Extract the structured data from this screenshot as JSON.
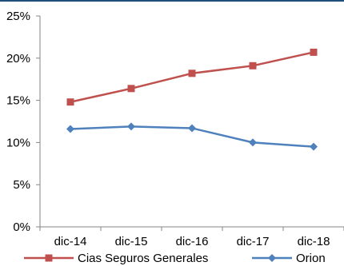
{
  "chart_data": {
    "type": "line",
    "categories": [
      "dic-14",
      "dic-15",
      "dic-16",
      "dic-17",
      "dic-18"
    ],
    "y_ticks": [
      "0%",
      "5%",
      "10%",
      "15%",
      "20%",
      "25%"
    ],
    "ylim": [
      0,
      25
    ],
    "grid": false,
    "legend_position": "bottom",
    "series": [
      {
        "name": "Cias Seguros Generales",
        "values": [
          14.8,
          16.4,
          18.2,
          19.1,
          20.7
        ],
        "color": "#c0504d",
        "marker": "square"
      },
      {
        "name": "Orion",
        "values": [
          11.6,
          11.9,
          11.7,
          10.0,
          9.5
        ],
        "color": "#4f81bd",
        "marker": "diamond"
      }
    ]
  },
  "frame": {
    "top_rule_color": "#1f4e79"
  }
}
